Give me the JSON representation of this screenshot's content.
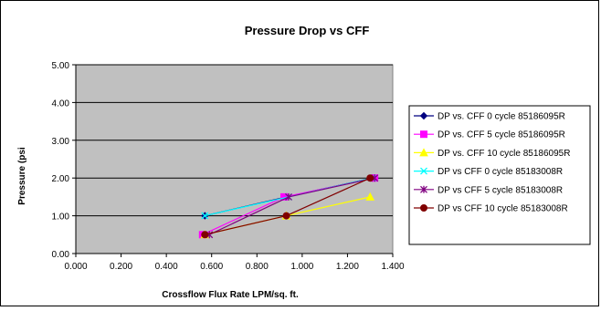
{
  "chart_data": {
    "type": "line",
    "title": "Pressure Drop vs CFF",
    "xlabel": "Crossflow Flux Rate LPM/sq. ft.",
    "ylabel": "Pressure (psi",
    "xlim": [
      0,
      1.4
    ],
    "ylim": [
      0,
      5
    ],
    "x_ticks": [
      "0.000",
      "0.200",
      "0.400",
      "0.600",
      "0.800",
      "1.000",
      "1.200",
      "1.400"
    ],
    "y_ticks": [
      "0.00",
      "1.00",
      "2.00",
      "3.00",
      "4.00",
      "5.00"
    ],
    "grid": "horizontal",
    "plot_background": "#C0C0C0",
    "legend_position": "right",
    "series": [
      {
        "name": "DP vs. CFF 0 cycle 85186095R",
        "color": "#000080",
        "marker": "diamond",
        "x": [
          0.57,
          0.93,
          1.31
        ],
        "y": [
          1.0,
          1.5,
          2.0
        ]
      },
      {
        "name": "DP vs. CFF  5 cycle 85186095R",
        "color": "#FF00FF",
        "marker": "square",
        "x": [
          0.56,
          0.92,
          1.32
        ],
        "y": [
          0.5,
          1.5,
          2.0
        ]
      },
      {
        "name": "DP vs. CFF 10 cycle 85186095R",
        "color": "#FFFF00",
        "marker": "triangle",
        "x": [
          0.57,
          0.93,
          1.3
        ],
        "y": [
          0.5,
          1.0,
          1.5
        ]
      },
      {
        "name": "DP vs CFF 0 cycle 85183008R",
        "color": "#00FFFF",
        "marker": "x",
        "x": [
          0.57,
          0.94,
          1.31
        ],
        "y": [
          1.0,
          1.5,
          2.0
        ]
      },
      {
        "name": "DP vs CFF 5 cycle 85183008R",
        "color": "#800080",
        "marker": "star",
        "x": [
          0.59,
          0.94,
          1.32
        ],
        "y": [
          0.5,
          1.5,
          2.0
        ]
      },
      {
        "name": "DP vs CFF 10 cycle 85183008R",
        "color": "#800000",
        "marker": "circle",
        "x": [
          0.57,
          0.93,
          1.3
        ],
        "y": [
          0.5,
          1.0,
          2.0
        ]
      }
    ]
  }
}
